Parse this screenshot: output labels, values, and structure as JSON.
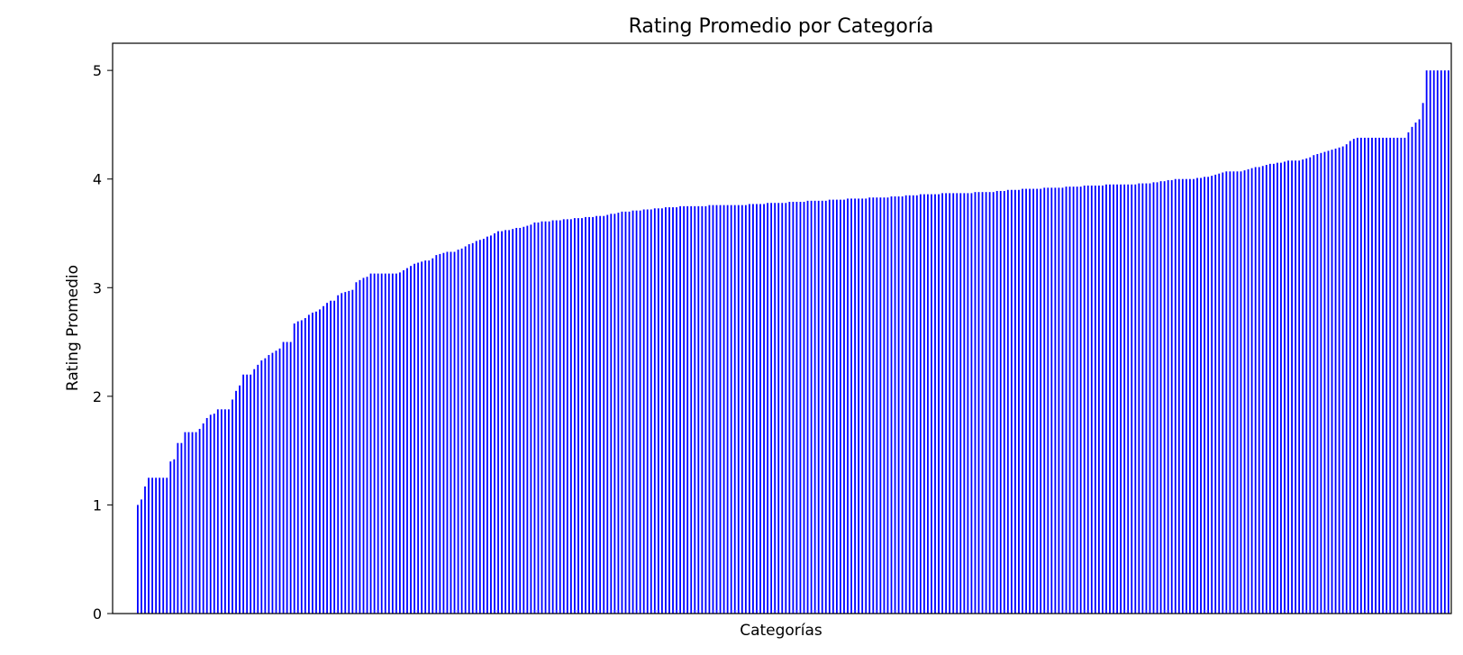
{
  "chart_data": {
    "type": "bar",
    "title": "Rating Promedio por Categoría",
    "xlabel": "Categorías",
    "ylabel": "Rating Promedio",
    "ylim": [
      0,
      5.25
    ],
    "yticks": [
      0,
      1,
      2,
      3,
      4,
      5
    ],
    "grid": false,
    "bar_color": "#0000ff",
    "values": [
      1.0,
      1.05,
      1.17,
      1.25,
      1.25,
      1.25,
      1.25,
      1.25,
      1.25,
      1.4,
      1.42,
      1.57,
      1.57,
      1.67,
      1.67,
      1.67,
      1.67,
      1.7,
      1.75,
      1.8,
      1.83,
      1.84,
      1.88,
      1.88,
      1.88,
      1.88,
      1.97,
      2.05,
      2.1,
      2.2,
      2.2,
      2.2,
      2.25,
      2.29,
      2.33,
      2.35,
      2.38,
      2.4,
      2.42,
      2.44,
      2.5,
      2.5,
      2.5,
      2.67,
      2.69,
      2.7,
      2.72,
      2.75,
      2.77,
      2.78,
      2.8,
      2.83,
      2.86,
      2.88,
      2.88,
      2.93,
      2.95,
      2.96,
      2.97,
      2.98,
      3.05,
      3.07,
      3.09,
      3.1,
      3.13,
      3.13,
      3.13,
      3.13,
      3.13,
      3.13,
      3.13,
      3.13,
      3.14,
      3.16,
      3.18,
      3.2,
      3.22,
      3.23,
      3.24,
      3.25,
      3.25,
      3.27,
      3.3,
      3.31,
      3.32,
      3.33,
      3.33,
      3.33,
      3.35,
      3.36,
      3.38,
      3.4,
      3.41,
      3.43,
      3.44,
      3.45,
      3.47,
      3.48,
      3.5,
      3.52,
      3.52,
      3.53,
      3.53,
      3.54,
      3.55,
      3.55,
      3.56,
      3.57,
      3.58,
      3.6,
      3.6,
      3.61,
      3.61,
      3.61,
      3.62,
      3.62,
      3.62,
      3.63,
      3.63,
      3.63,
      3.64,
      3.64,
      3.64,
      3.65,
      3.65,
      3.65,
      3.66,
      3.66,
      3.66,
      3.67,
      3.68,
      3.68,
      3.69,
      3.7,
      3.7,
      3.7,
      3.71,
      3.71,
      3.71,
      3.72,
      3.72,
      3.72,
      3.73,
      3.73,
      3.73,
      3.74,
      3.74,
      3.74,
      3.74,
      3.75,
      3.75,
      3.75,
      3.75,
      3.75,
      3.75,
      3.75,
      3.75,
      3.76,
      3.76,
      3.76,
      3.76,
      3.76,
      3.76,
      3.76,
      3.76,
      3.76,
      3.76,
      3.76,
      3.77,
      3.77,
      3.77,
      3.77,
      3.77,
      3.78,
      3.78,
      3.78,
      3.78,
      3.78,
      3.78,
      3.79,
      3.79,
      3.79,
      3.79,
      3.79,
      3.8,
      3.8,
      3.8,
      3.8,
      3.8,
      3.8,
      3.81,
      3.81,
      3.81,
      3.81,
      3.81,
      3.82,
      3.82,
      3.82,
      3.82,
      3.82,
      3.82,
      3.83,
      3.83,
      3.83,
      3.83,
      3.83,
      3.83,
      3.84,
      3.84,
      3.84,
      3.84,
      3.85,
      3.85,
      3.85,
      3.85,
      3.86,
      3.86,
      3.86,
      3.86,
      3.86,
      3.86,
      3.87,
      3.87,
      3.87,
      3.87,
      3.87,
      3.87,
      3.87,
      3.87,
      3.87,
      3.88,
      3.88,
      3.88,
      3.88,
      3.88,
      3.88,
      3.89,
      3.89,
      3.89,
      3.9,
      3.9,
      3.9,
      3.9,
      3.91,
      3.91,
      3.91,
      3.91,
      3.91,
      3.91,
      3.92,
      3.92,
      3.92,
      3.92,
      3.92,
      3.92,
      3.93,
      3.93,
      3.93,
      3.93,
      3.93,
      3.94,
      3.94,
      3.94,
      3.94,
      3.94,
      3.94,
      3.95,
      3.95,
      3.95,
      3.95,
      3.95,
      3.95,
      3.95,
      3.95,
      3.95,
      3.96,
      3.96,
      3.96,
      3.96,
      3.97,
      3.97,
      3.98,
      3.98,
      3.99,
      3.99,
      4.0,
      4.0,
      4.0,
      4.0,
      4.0,
      4.0,
      4.01,
      4.01,
      4.02,
      4.02,
      4.03,
      4.04,
      4.05,
      4.06,
      4.07,
      4.07,
      4.07,
      4.07,
      4.07,
      4.08,
      4.09,
      4.1,
      4.11,
      4.11,
      4.12,
      4.13,
      4.14,
      4.14,
      4.15,
      4.15,
      4.16,
      4.17,
      4.17,
      4.17,
      4.17,
      4.18,
      4.19,
      4.2,
      4.22,
      4.23,
      4.24,
      4.25,
      4.26,
      4.27,
      4.28,
      4.29,
      4.3,
      4.32,
      4.35,
      4.37,
      4.38,
      4.38,
      4.38,
      4.38,
      4.38,
      4.38,
      4.38,
      4.38,
      4.38,
      4.38,
      4.38,
      4.38,
      4.38,
      4.38,
      4.43,
      4.48,
      4.52,
      4.55,
      4.7,
      5.0,
      5.0,
      5.0,
      5.0,
      5.0,
      5.0,
      5.0
    ]
  }
}
